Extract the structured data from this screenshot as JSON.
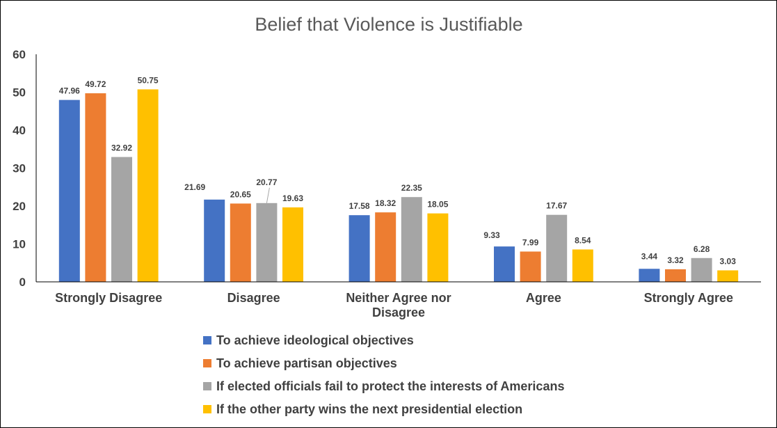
{
  "chart_data": {
    "type": "bar",
    "title": "Belief that Violence is Justifiable",
    "xlabel": "",
    "ylabel": "",
    "ylim": [
      0,
      60
    ],
    "yticks": [
      "0",
      "10",
      "20",
      "30",
      "40",
      "50",
      "60"
    ],
    "categories": [
      [
        "Strongly Disagree"
      ],
      [
        "Disagree"
      ],
      [
        "Neither Agree nor",
        "Disagree"
      ],
      [
        "Agree"
      ],
      [
        "Strongly Agree"
      ]
    ],
    "series": [
      {
        "name": "To achieve ideological objectives",
        "color": "#4472C4",
        "values": [
          47.96,
          21.69,
          17.58,
          9.33,
          3.44
        ],
        "labels": [
          "47.96",
          "21.69",
          "17.58",
          "9.33",
          "3.44"
        ]
      },
      {
        "name": "To achieve partisan objectives",
        "color": "#ED7D31",
        "values": [
          49.72,
          20.65,
          18.32,
          7.99,
          3.32
        ],
        "labels": [
          "49.72",
          "20.65",
          "18.32",
          "7.99",
          "3.32"
        ]
      },
      {
        "name": "If elected officials fail to protect the interests of Americans",
        "color": "#A5A5A5",
        "values": [
          32.92,
          20.77,
          22.35,
          17.67,
          6.28
        ],
        "labels": [
          "32.92",
          "20.77",
          "22.35",
          "17.67",
          "6.28"
        ]
      },
      {
        "name": "If the other party wins the next presidential election",
        "color": "#FFC000",
        "values": [
          50.75,
          19.63,
          18.05,
          8.54,
          3.03
        ],
        "labels": [
          "50.75",
          "19.63",
          "18.05",
          "8.54",
          "3.03"
        ]
      }
    ],
    "grid": false,
    "legend_position": "bottom"
  }
}
